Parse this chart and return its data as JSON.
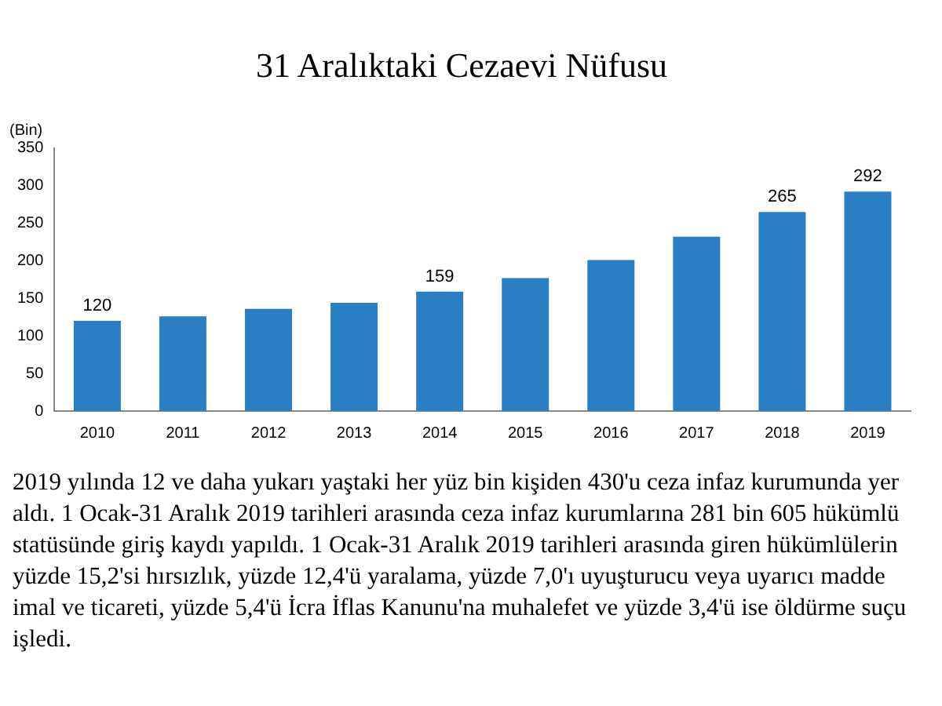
{
  "chart_data": {
    "type": "bar",
    "title": "31 Aralıktaki Cezaevi Nüfusu",
    "ylabel": "(Bin)",
    "categories": [
      "2010",
      "2011",
      "2012",
      "2013",
      "2014",
      "2015",
      "2016",
      "2017",
      "2018",
      "2019"
    ],
    "values": [
      120,
      126,
      136,
      144,
      159,
      177,
      201,
      232,
      265,
      292
    ],
    "value_labels": [
      "120",
      null,
      null,
      null,
      "159",
      null,
      null,
      null,
      "265",
      "292"
    ],
    "color": "#2a7fc4",
    "ylim": [
      0,
      350
    ],
    "yticks": [
      0,
      50,
      100,
      150,
      200,
      250,
      300,
      350
    ],
    "grid": false,
    "legend": false,
    "annotations": [
      "2019 yılında 12 ve daha yukarı yaştaki her yüz bin kişiden 430'u ceza infaz kurumunda yer aldı. 1 Ocak-31 Aralık 2019 tarihleri arasında ceza infaz kurumlarına 281 bin 605 hükümlü statüsünde giriş kaydı yapıldı. 1 Ocak-31 Aralık 2019 tarihleri arasında giren hükümlülerin yüzde 15,2'si hırsızlık, yüzde 12,4'ü yaralama, yüzde 7,0'ı uyuşturucu veya uyarıcı madde imal ve ticareti, yüzde 5,4'ü İcra İflas Kanunu'na muhalefet ve yüzde 3,4'ü ise öldürme suçu işledi."
    ]
  }
}
